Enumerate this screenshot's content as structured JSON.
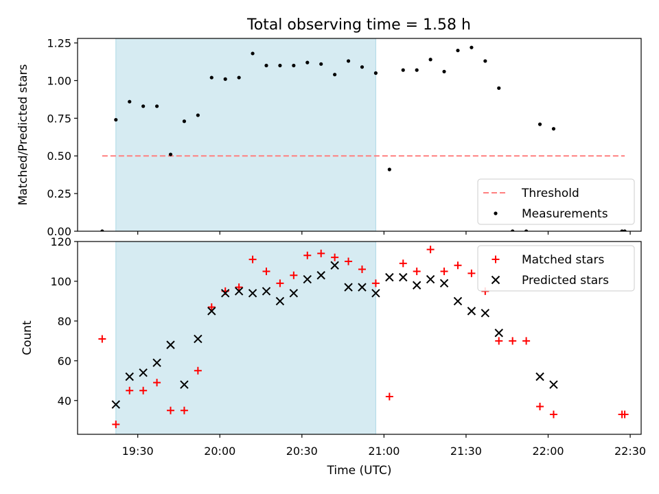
{
  "figure": {
    "title": "Total observing time = 1.58 h"
  },
  "chart_data": [
    {
      "type": "scatter",
      "panel": "top",
      "ylabel": "Matched/Predicted stars",
      "ylim": [
        0,
        1.28
      ],
      "xlim": [
        "19:08",
        "22:34"
      ],
      "yticks": [
        0.0,
        0.25,
        0.5,
        0.75,
        1.0,
        1.25
      ],
      "ytick_labels": [
        "0.00",
        "0.25",
        "0.50",
        "0.75",
        "1.00",
        "1.25"
      ],
      "shaded_span": {
        "start": "19:22",
        "end": "20:57",
        "color": "#add8e6"
      },
      "threshold": {
        "name": "Threshold",
        "value": 0.5,
        "x_range": [
          "19:17",
          "22:28"
        ],
        "color": "#ff7f7f",
        "style": "dashed"
      },
      "series": [
        {
          "name": "Measurements",
          "marker": "dot",
          "color": "#000000",
          "points": [
            {
              "x": "19:17",
              "y": 0.0
            },
            {
              "x": "19:22",
              "y": 0.74
            },
            {
              "x": "19:27",
              "y": 0.86
            },
            {
              "x": "19:32",
              "y": 0.83
            },
            {
              "x": "19:37",
              "y": 0.83
            },
            {
              "x": "19:42",
              "y": 0.51
            },
            {
              "x": "19:47",
              "y": 0.73
            },
            {
              "x": "19:52",
              "y": 0.77
            },
            {
              "x": "19:57",
              "y": 1.02
            },
            {
              "x": "20:02",
              "y": 1.01
            },
            {
              "x": "20:07",
              "y": 1.02
            },
            {
              "x": "20:12",
              "y": 1.18
            },
            {
              "x": "20:17",
              "y": 1.1
            },
            {
              "x": "20:22",
              "y": 1.1
            },
            {
              "x": "20:27",
              "y": 1.1
            },
            {
              "x": "20:32",
              "y": 1.12
            },
            {
              "x": "20:37",
              "y": 1.11
            },
            {
              "x": "20:42",
              "y": 1.04
            },
            {
              "x": "20:47",
              "y": 1.13
            },
            {
              "x": "20:52",
              "y": 1.09
            },
            {
              "x": "20:57",
              "y": 1.05
            },
            {
              "x": "21:02",
              "y": 0.41
            },
            {
              "x": "21:07",
              "y": 1.07
            },
            {
              "x": "21:12",
              "y": 1.07
            },
            {
              "x": "21:17",
              "y": 1.14
            },
            {
              "x": "21:22",
              "y": 1.06
            },
            {
              "x": "21:27",
              "y": 1.2
            },
            {
              "x": "21:32",
              "y": 1.22
            },
            {
              "x": "21:37",
              "y": 1.13
            },
            {
              "x": "21:42",
              "y": 0.95
            },
            {
              "x": "21:47",
              "y": 0.0
            },
            {
              "x": "21:52",
              "y": 0.0
            },
            {
              "x": "21:57",
              "y": 0.71
            },
            {
              "x": "22:02",
              "y": 0.68
            },
            {
              "x": "22:27",
              "y": 0.0
            },
            {
              "x": "22:28",
              "y": 0.0
            }
          ]
        }
      ],
      "legend": {
        "placement": "lower-right",
        "entries": [
          "Threshold",
          "Measurements"
        ]
      }
    },
    {
      "type": "scatter",
      "panel": "bottom",
      "xlabel": "Time (UTC)",
      "ylabel": "Count",
      "ylim": [
        23,
        120
      ],
      "xlim": [
        "19:08",
        "22:34"
      ],
      "yticks": [
        40,
        60,
        80,
        100,
        120
      ],
      "ytick_labels": [
        "40",
        "60",
        "80",
        "100",
        "120"
      ],
      "xticks": [
        "19:30",
        "20:00",
        "20:30",
        "21:00",
        "21:30",
        "22:00",
        "22:30"
      ],
      "xtick_labels": [
        "19:30",
        "20:00",
        "20:30",
        "21:00",
        "21:30",
        "22:00",
        "22:30"
      ],
      "shaded_span": {
        "start": "19:22",
        "end": "20:57",
        "color": "#add8e6"
      },
      "series": [
        {
          "name": "Matched stars",
          "marker": "plus",
          "color": "#ff0000",
          "points": [
            {
              "x": "19:17",
              "y": 71
            },
            {
              "x": "19:22",
              "y": 28
            },
            {
              "x": "19:27",
              "y": 45
            },
            {
              "x": "19:32",
              "y": 45
            },
            {
              "x": "19:37",
              "y": 49
            },
            {
              "x": "19:42",
              "y": 35
            },
            {
              "x": "19:47",
              "y": 35
            },
            {
              "x": "19:52",
              "y": 55
            },
            {
              "x": "19:57",
              "y": 87
            },
            {
              "x": "20:02",
              "y": 95
            },
            {
              "x": "20:07",
              "y": 97
            },
            {
              "x": "20:12",
              "y": 111
            },
            {
              "x": "20:17",
              "y": 105
            },
            {
              "x": "20:22",
              "y": 99
            },
            {
              "x": "20:27",
              "y": 103
            },
            {
              "x": "20:32",
              "y": 113
            },
            {
              "x": "20:37",
              "y": 114
            },
            {
              "x": "20:42",
              "y": 112
            },
            {
              "x": "20:47",
              "y": 110
            },
            {
              "x": "20:52",
              "y": 106
            },
            {
              "x": "20:57",
              "y": 99
            },
            {
              "x": "21:02",
              "y": 42
            },
            {
              "x": "21:07",
              "y": 109
            },
            {
              "x": "21:12",
              "y": 105
            },
            {
              "x": "21:17",
              "y": 116
            },
            {
              "x": "21:22",
              "y": 105
            },
            {
              "x": "21:27",
              "y": 108
            },
            {
              "x": "21:32",
              "y": 104
            },
            {
              "x": "21:37",
              "y": 95
            },
            {
              "x": "21:42",
              "y": 70
            },
            {
              "x": "21:47",
              "y": 70
            },
            {
              "x": "21:52",
              "y": 70
            },
            {
              "x": "21:57",
              "y": 37
            },
            {
              "x": "22:02",
              "y": 33
            },
            {
              "x": "22:27",
              "y": 33
            },
            {
              "x": "22:28",
              "y": 33
            }
          ]
        },
        {
          "name": "Predicted stars",
          "marker": "x",
          "color": "#000000",
          "points": [
            {
              "x": "19:22",
              "y": 38
            },
            {
              "x": "19:27",
              "y": 52
            },
            {
              "x": "19:32",
              "y": 54
            },
            {
              "x": "19:37",
              "y": 59
            },
            {
              "x": "19:42",
              "y": 68
            },
            {
              "x": "19:47",
              "y": 48
            },
            {
              "x": "19:52",
              "y": 71
            },
            {
              "x": "19:57",
              "y": 85
            },
            {
              "x": "20:02",
              "y": 94
            },
            {
              "x": "20:07",
              "y": 95
            },
            {
              "x": "20:12",
              "y": 94
            },
            {
              "x": "20:17",
              "y": 95
            },
            {
              "x": "20:22",
              "y": 90
            },
            {
              "x": "20:27",
              "y": 94
            },
            {
              "x": "20:32",
              "y": 101
            },
            {
              "x": "20:37",
              "y": 103
            },
            {
              "x": "20:42",
              "y": 108
            },
            {
              "x": "20:47",
              "y": 97
            },
            {
              "x": "20:52",
              "y": 97
            },
            {
              "x": "20:57",
              "y": 94
            },
            {
              "x": "21:02",
              "y": 102
            },
            {
              "x": "21:07",
              "y": 102
            },
            {
              "x": "21:12",
              "y": 98
            },
            {
              "x": "21:17",
              "y": 101
            },
            {
              "x": "21:22",
              "y": 99
            },
            {
              "x": "21:27",
              "y": 90
            },
            {
              "x": "21:32",
              "y": 85
            },
            {
              "x": "21:37",
              "y": 84
            },
            {
              "x": "21:42",
              "y": 74
            },
            {
              "x": "21:57",
              "y": 52
            },
            {
              "x": "22:02",
              "y": 48
            }
          ]
        }
      ],
      "legend": {
        "placement": "upper-right",
        "entries": [
          "Matched stars",
          "Predicted stars"
        ]
      }
    }
  ]
}
